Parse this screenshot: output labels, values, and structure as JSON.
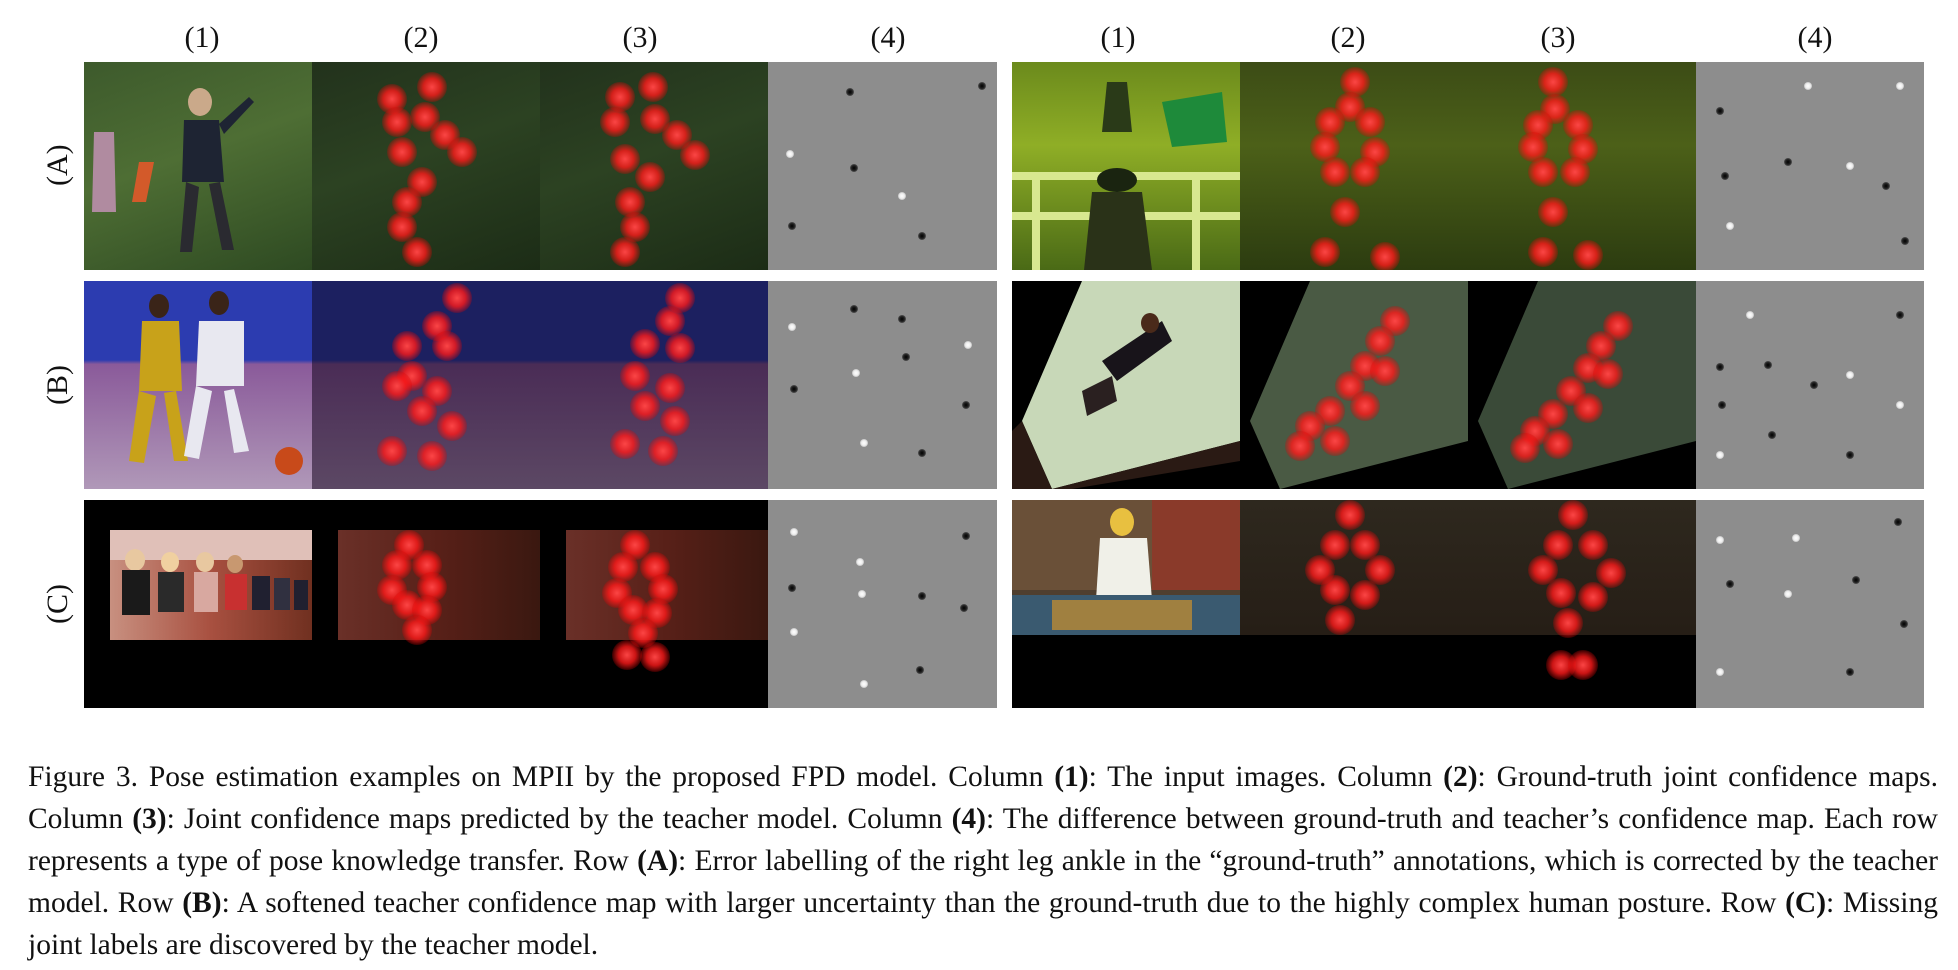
{
  "column_labels": [
    "(1)",
    "(2)",
    "(3)",
    "(4)",
    "(1)",
    "(2)",
    "(3)",
    "(4)"
  ],
  "row_labels": [
    "(A)",
    "(B)",
    "(C)"
  ],
  "caption": {
    "lead": "Figure 3.  Pose estimation examples on MPII by the proposed FPD model. Column ",
    "c1": "(1)",
    "t1": ": The input images. Column ",
    "c2": "(2)",
    "t2": ": Ground-truth joint confidence maps. Column ",
    "c3": "(3)",
    "t3": ": Joint confidence maps predicted by the teacher model. Column ",
    "c4": "(4)",
    "t4": ": The difference between ground-truth and teacher’s confidence map. Each row represents a type of pose knowledge transfer. Row ",
    "rA": "(A)",
    "tA": ": Error labelling of the right leg ankle in the “ground-truth” annotations, which is corrected by the teacher model. Row ",
    "rB": "(B)",
    "tB": ": A softened teacher confidence map with larger uncertainty than the ground-truth due to the highly complex human posture. Row ",
    "rC": "(C)",
    "tC": ": Missing joint labels are discovered by the teacher model."
  },
  "colors": {
    "row_a_left": "#2f4a26",
    "row_a_right": "#5f7f22",
    "row_b_left": "#3a3a8a",
    "row_b_right": "#6b7a5a",
    "row_c_left": "#5a2418",
    "row_c_right": "#4a3a2a",
    "difference_map": "#8d8d8d",
    "joint_heat": "#ff2020"
  }
}
